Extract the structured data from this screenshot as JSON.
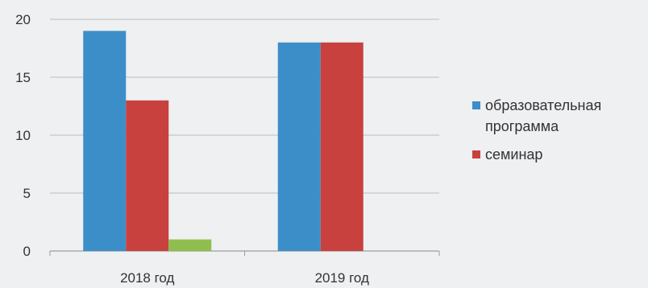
{
  "chart_data": {
    "type": "bar",
    "categories": [
      "2018 год",
      "2019 год"
    ],
    "series": [
      {
        "name": "образовательная программа",
        "values": [
          19,
          18
        ],
        "color": "#3c8ec9"
      },
      {
        "name": "семинар",
        "values": [
          13,
          18
        ],
        "color": "#c8413f"
      },
      {
        "name": "",
        "values": [
          1,
          null
        ],
        "color": "#8fbe4e"
      }
    ],
    "ylim": [
      0,
      20
    ],
    "yticks": [
      0,
      5,
      10,
      15,
      20
    ],
    "grid": true,
    "legend_position": "right",
    "title": "",
    "xlabel": "",
    "ylabel": ""
  },
  "legend": {
    "items": [
      {
        "label": "образовательная программа",
        "color": "#3c8ec9"
      },
      {
        "label": "семинар",
        "color": "#c8413f"
      }
    ]
  }
}
